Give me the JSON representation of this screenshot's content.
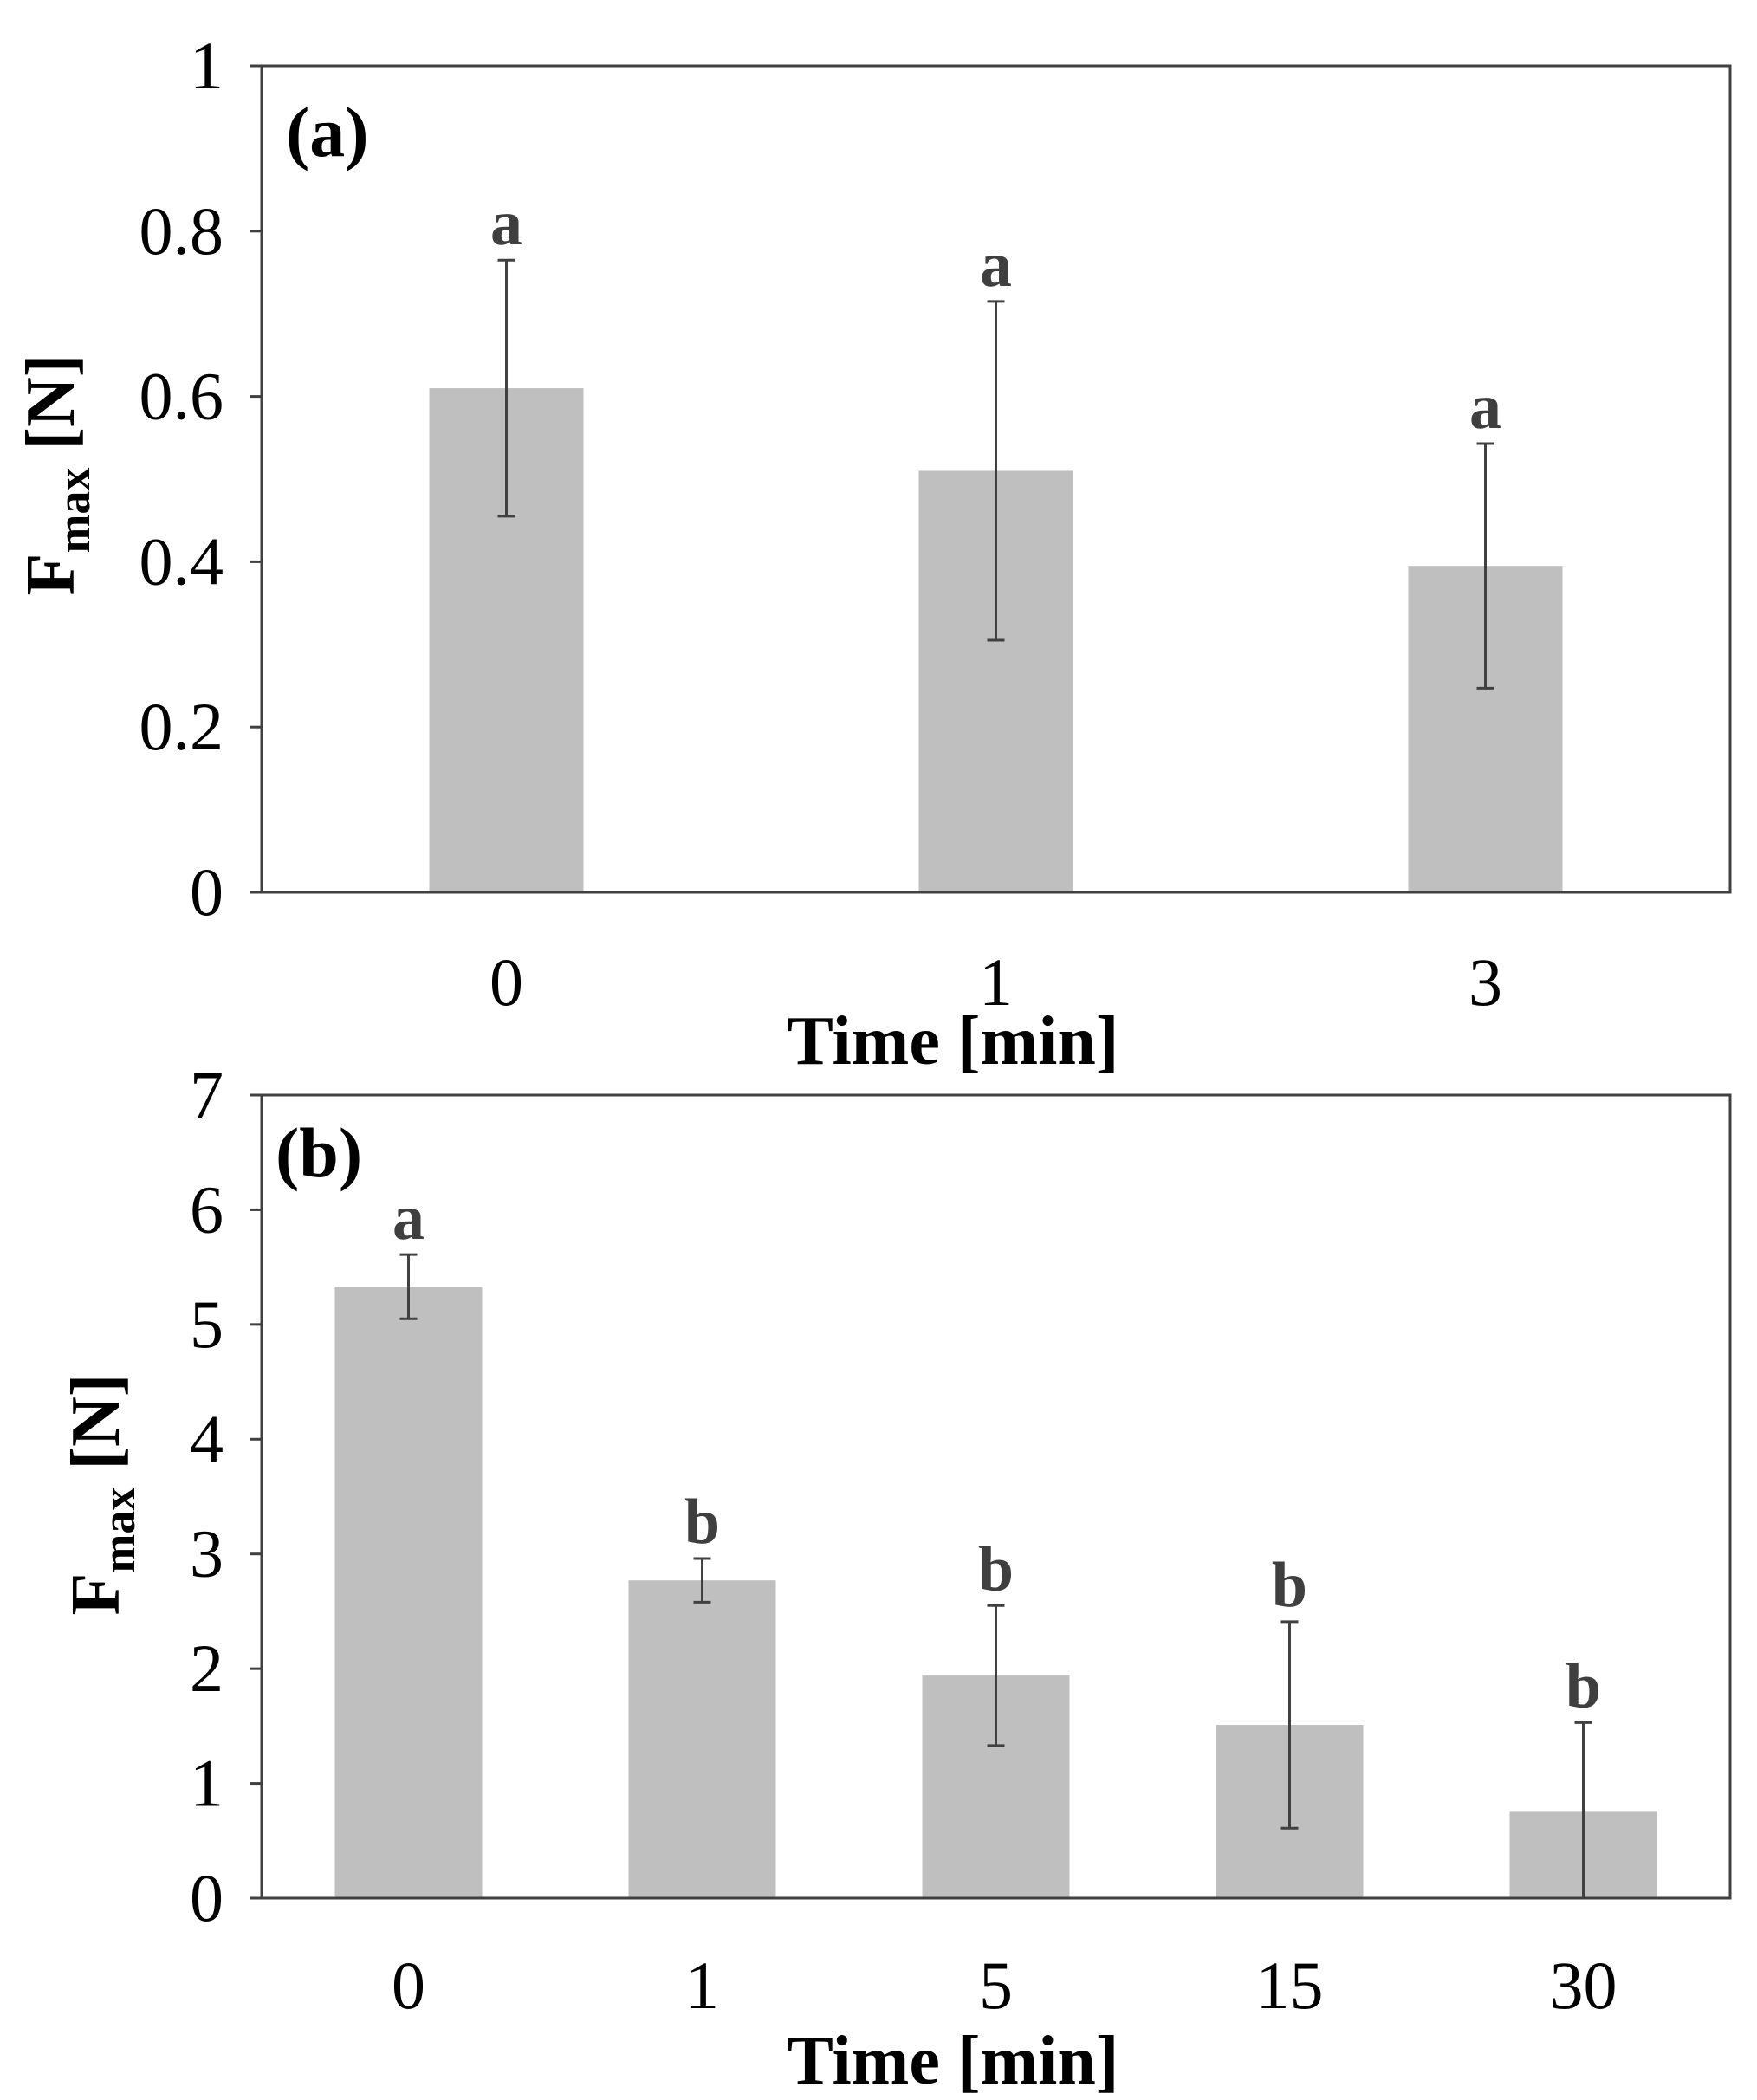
{
  "colors": {
    "bar_fill": "#bfbfbf",
    "axis": "#404040",
    "error_bar": "#404040",
    "letter": "#3f3f3f"
  },
  "chart_data": [
    {
      "type": "bar",
      "panel_label": "(a)",
      "categories": [
        "0",
        "1",
        "3"
      ],
      "values": [
        0.61,
        0.51,
        0.395
      ],
      "errors": [
        0.155,
        0.205,
        0.148
      ],
      "significance": [
        "a",
        "a",
        "a"
      ],
      "xlabel": "Time [min]",
      "ylabel_main": "F",
      "ylabel_sub": "max",
      "ylabel_unit": " [N]",
      "ylim": [
        0,
        1
      ],
      "yticks": [
        0,
        0.2,
        0.4,
        0.6,
        0.8,
        1
      ],
      "ytick_labels": [
        "0",
        "0.2",
        "0.4",
        "0.6",
        "0.8",
        "1"
      ],
      "grid": false
    },
    {
      "type": "bar",
      "panel_label": "(b)",
      "categories": [
        "0",
        "1",
        "5",
        "15",
        "30"
      ],
      "values": [
        5.33,
        2.77,
        1.94,
        1.51,
        0.76
      ],
      "errors": [
        0.28,
        0.19,
        0.61,
        0.9,
        0.77
      ],
      "significance": [
        "a",
        "b",
        "b",
        "b",
        "b"
      ],
      "xlabel": "Time [min]",
      "ylabel_main": "F",
      "ylabel_sub": "max",
      "ylabel_unit": " [N]",
      "ylim": [
        0,
        7
      ],
      "yticks": [
        0,
        1,
        2,
        3,
        4,
        5,
        6,
        7
      ],
      "ytick_labels": [
        "0",
        "1",
        "2",
        "3",
        "4",
        "5",
        "6",
        "7"
      ],
      "grid": false
    }
  ]
}
